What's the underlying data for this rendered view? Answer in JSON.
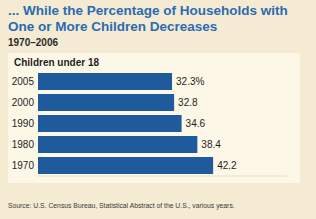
{
  "chart_data": {
    "type": "bar",
    "orientation": "horizontal",
    "title": "... While the Percentage of Households with One or More Children Decreases",
    "subtitle": "1970–2006",
    "xlabel": "Children under 18",
    "categories": [
      "2005",
      "2000",
      "1990",
      "1980",
      "1970"
    ],
    "values": [
      32.3,
      32.8,
      34.6,
      38.4,
      42.2
    ],
    "value_labels": [
      "32.3%",
      "32.8",
      "34.6",
      "38.4",
      "42.2"
    ],
    "data_labels": true,
    "color": "#1f5a9c",
    "xlim": [
      0,
      60
    ],
    "tick_labels": false,
    "grid": false,
    "source": "Source: U.S. Census Bureau, Statistical Abstract of the U.S., various years."
  }
}
